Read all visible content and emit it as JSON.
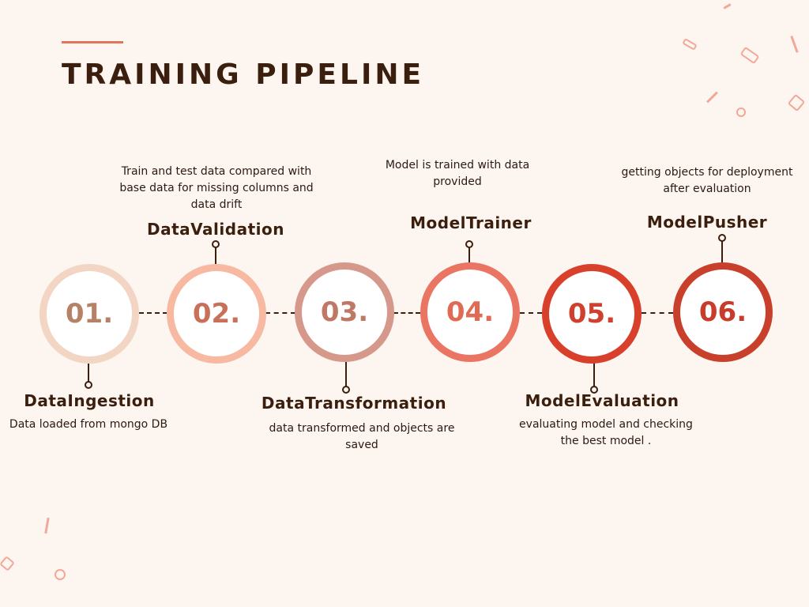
{
  "header": {
    "title": "TRAINING PIPELINE"
  },
  "steps": [
    {
      "number": "01.",
      "name": "DataIngestion",
      "description": "Data loaded from mongo DB",
      "ring_color": "#f2d6c3",
      "number_color": "#b58268"
    },
    {
      "number": "02.",
      "name": "DataValidation",
      "description": "Train and test data compared with base data for missing columns and data drift",
      "ring_color": "#f8b9a2",
      "number_color": "#c8705a"
    },
    {
      "number": "03.",
      "name": "DataTransformation",
      "description": "data transformed and objects are saved",
      "ring_color": "#d6988a",
      "number_color": "#c07866"
    },
    {
      "number": "04.",
      "name": "ModelTrainer",
      "description": "Model is trained with data provided",
      "ring_color": "#ea7562",
      "number_color": "#e06a54"
    },
    {
      "number": "05.",
      "name": "ModelEvaluation",
      "description": "evaluating model and checking the best model .",
      "ring_color": "#d8402c",
      "number_color": "#d0402e"
    },
    {
      "number": "06.",
      "name": "ModelPusher",
      "description": "getting objects for deployment after evaluation",
      "ring_color": "#c8402c",
      "number_color": "#c83c2c"
    }
  ],
  "colors": {
    "background": "#fdf5ef",
    "text": "#3a1e0e",
    "accent": "#e0745c"
  }
}
